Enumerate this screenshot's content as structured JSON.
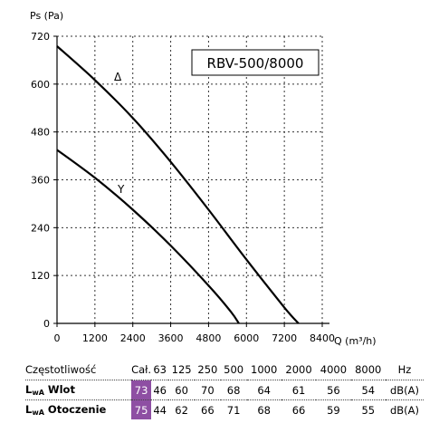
{
  "chart_data": {
    "type": "line",
    "model": "RBV-500/8000",
    "ylabel": "Ps (Pa)",
    "xlabel": "Q (m³/h)",
    "xlim": [
      0,
      8400
    ],
    "ylim": [
      0,
      720
    ],
    "x_ticks": [
      "0",
      "1200",
      "2400",
      "3600",
      "4800",
      "6000",
      "7200",
      "8400"
    ],
    "y_ticks": [
      "0",
      "120",
      "240",
      "360",
      "480",
      "600",
      "720"
    ],
    "grid": true,
    "series": [
      {
        "name": "Δ",
        "x": [
          0,
          1200,
          2400,
          3600,
          4800,
          6000,
          7200,
          7650
        ],
        "y": [
          695,
          610,
          515,
          405,
          285,
          160,
          40,
          0
        ]
      },
      {
        "name": "Y",
        "x": [
          0,
          1200,
          2400,
          3600,
          4800,
          5500,
          5760
        ],
        "y": [
          435,
          365,
          285,
          195,
          95,
          30,
          0
        ]
      }
    ]
  },
  "noise_table": {
    "header": [
      "Częstotliwość",
      "Cał.",
      "63",
      "125",
      "250",
      "500",
      "1000",
      "2000",
      "4000",
      "8000",
      "Hz"
    ],
    "rows": [
      {
        "label_main": "L",
        "label_sub": "wA",
        "label_rest": " Wlot",
        "values": [
          "73",
          "46",
          "60",
          "70",
          "68",
          "64",
          "61",
          "56",
          "54"
        ],
        "unit": "dB(A)"
      },
      {
        "label_main": "L",
        "label_sub": "wA",
        "label_rest": " Otoczenie",
        "values": [
          "75",
          "44",
          "62",
          "66",
          "71",
          "68",
          "66",
          "59",
          "55"
        ],
        "unit": "dB(A)"
      }
    ],
    "total_color": "#8e4fa3"
  }
}
